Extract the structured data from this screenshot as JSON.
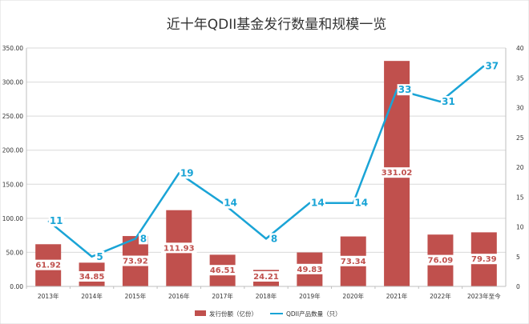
{
  "chart_data": {
    "type": "bar",
    "title": "近十年QDII基金发行数量和规模一览",
    "categories": [
      "2013年",
      "2014年",
      "2015年",
      "2016年",
      "2017年",
      "2018年",
      "2019年",
      "2020年",
      "2021年",
      "2022年",
      "2023年至今"
    ],
    "series": [
      {
        "name": "发行份额（亿份）",
        "type": "bar",
        "axis": "left",
        "color": "#c0504d",
        "values": [
          61.92,
          34.85,
          73.92,
          111.93,
          46.51,
          24.21,
          49.83,
          73.34,
          331.02,
          76.09,
          79.39
        ],
        "labels": [
          "61.92",
          "34.85",
          "73.92",
          "111.93",
          "46.51",
          "24.21",
          "49.83",
          "73.34",
          "331.02",
          "76.09",
          "79.39"
        ]
      },
      {
        "name": "QDII产品数量（只）",
        "type": "line",
        "axis": "right",
        "color": "#1aa4d6",
        "values": [
          11,
          5,
          8,
          19,
          14,
          8,
          14,
          14,
          33,
          31,
          37
        ],
        "labels": [
          "11",
          "5",
          "8",
          "19",
          "14",
          "8",
          "14",
          "14",
          "33",
          "31",
          "37"
        ]
      }
    ],
    "y_left": {
      "min": 0,
      "max": 350,
      "ticks": [
        0,
        50,
        100,
        150,
        200,
        250,
        300,
        350
      ],
      "tick_labels": [
        "0.00",
        "50.00",
        "100.00",
        "150.00",
        "200.00",
        "250.00",
        "300.00",
        "350.00"
      ]
    },
    "y_right": {
      "min": 0,
      "max": 40,
      "ticks": [
        0,
        5,
        10,
        15,
        20,
        25,
        30,
        35,
        40
      ],
      "tick_labels": [
        "0",
        "5",
        "10",
        "15",
        "20",
        "25",
        "30",
        "35",
        "40"
      ]
    },
    "grid": true,
    "legend_position": "bottom"
  }
}
